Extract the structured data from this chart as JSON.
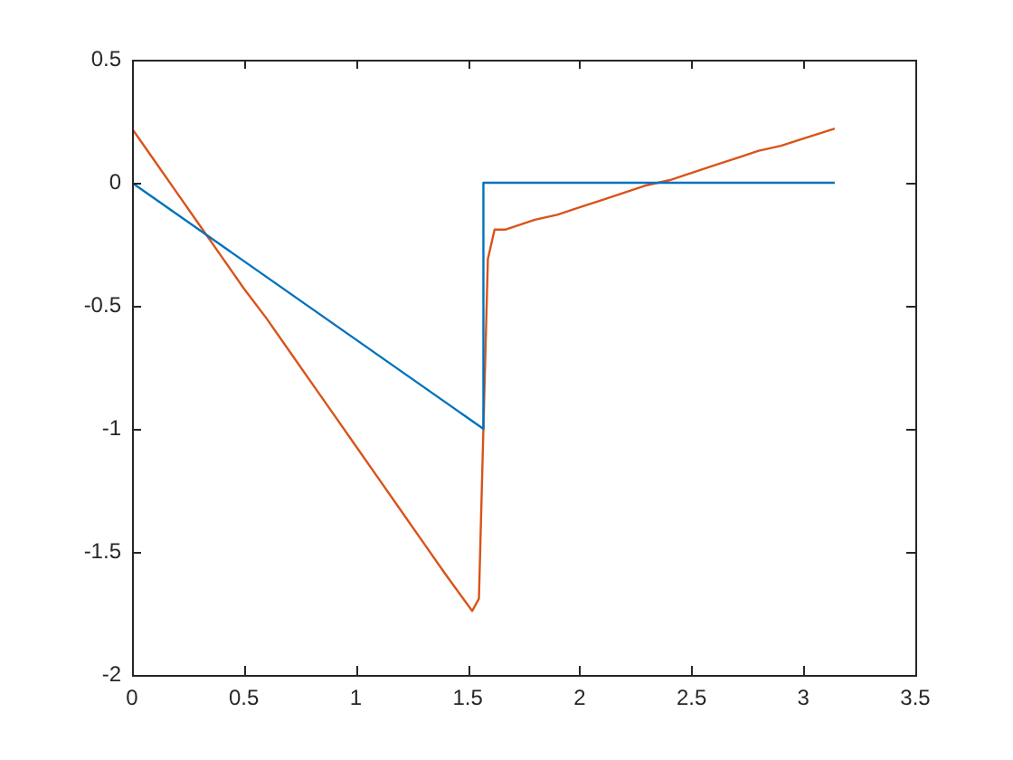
{
  "chart_data": {
    "type": "line",
    "xlim": [
      0,
      3.5
    ],
    "ylim": [
      -2,
      0.5
    ],
    "xticks": [
      0,
      0.5,
      1,
      1.5,
      2,
      2.5,
      3,
      3.5
    ],
    "yticks": [
      -2,
      -1.5,
      -1,
      -0.5,
      0,
      0.5
    ],
    "legend": false,
    "marker": "none",
    "line_style": "solid",
    "series": [
      {
        "color": "#0072bd",
        "x": [
          0,
          1.57,
          1.57,
          3.14
        ],
        "values": [
          0,
          -1,
          0,
          0
        ]
      },
      {
        "color": "#d95319",
        "x": [
          0,
          0.1,
          0.2,
          0.3,
          0.4,
          0.5,
          0.6,
          0.7,
          0.8,
          0.9,
          1.0,
          1.1,
          1.2,
          1.3,
          1.4,
          1.52,
          1.55,
          1.59,
          1.62,
          1.67,
          1.8,
          1.9,
          2.0,
          2.1,
          2.2,
          2.3,
          2.4,
          2.5,
          2.6,
          2.7,
          2.8,
          2.9,
          3.0,
          3.14
        ],
        "values": [
          0.22,
          0.09,
          -0.04,
          -0.17,
          -0.3,
          -0.43,
          -0.55,
          -0.68,
          -0.81,
          -0.94,
          -1.07,
          -1.2,
          -1.33,
          -1.46,
          -1.59,
          -1.74,
          -1.69,
          -0.31,
          -0.19,
          -0.19,
          -0.15,
          -0.13,
          -0.1,
          -0.07,
          -0.04,
          -0.01,
          0.01,
          0.04,
          0.07,
          0.1,
          0.13,
          0.15,
          0.18,
          0.22
        ]
      }
    ]
  }
}
